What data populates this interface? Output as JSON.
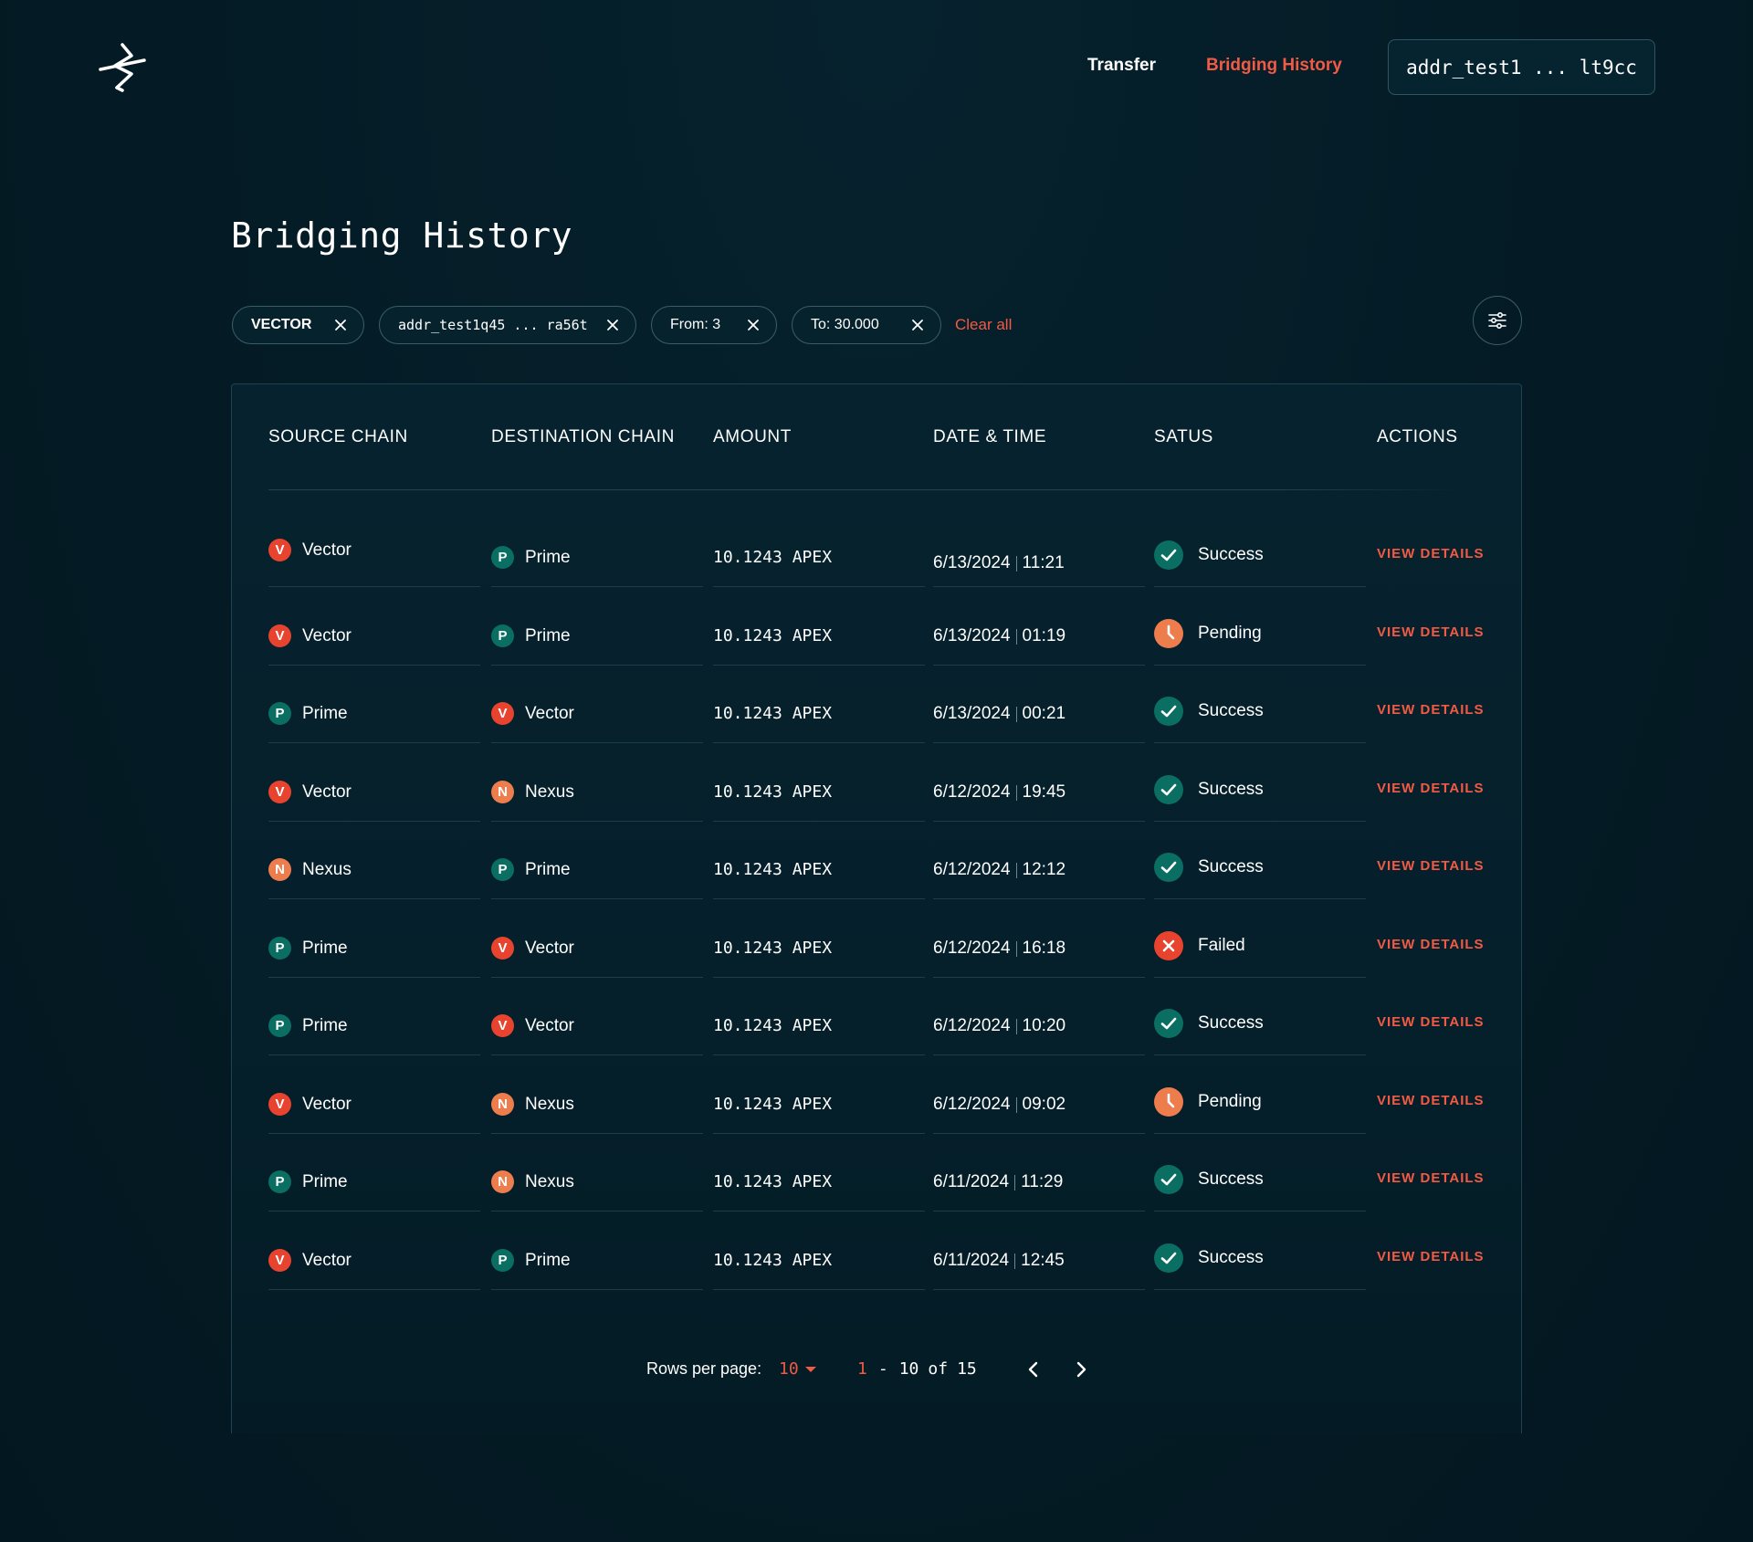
{
  "header": {
    "nav": [
      {
        "label": "Transfer",
        "active": false
      },
      {
        "label": "Bridging History",
        "active": true
      }
    ],
    "wallet_address": "addr_test1 ... lt9cc"
  },
  "page_title": "Bridging History",
  "filters": {
    "chips": [
      {
        "label": "VECTOR"
      },
      {
        "label": "addr_test1q45 ... ra56t"
      },
      {
        "label": "From: 3"
      },
      {
        "label": "To: 30.000"
      }
    ],
    "clear_all": "Clear all"
  },
  "table": {
    "columns": [
      "SOURCE CHAIN",
      "DESTINATION CHAIN",
      "AMOUNT",
      "DATE & TIME",
      "SATUS",
      "ACTIONS"
    ],
    "action_label": "VIEW DETAILS",
    "rows": [
      {
        "source": "Vector",
        "source_letter": "V",
        "dest": "Prime",
        "dest_letter": "P",
        "amount": "10.1243 APEX",
        "date": "6/13/2024",
        "time": "11:21",
        "status": "Success"
      },
      {
        "source": "Vector",
        "source_letter": "V",
        "dest": "Prime",
        "dest_letter": "P",
        "amount": "10.1243 APEX",
        "date": "6/13/2024",
        "time": "01:19",
        "status": "Pending"
      },
      {
        "source": "Prime",
        "source_letter": "P",
        "dest": "Vector",
        "dest_letter": "V",
        "amount": "10.1243 APEX",
        "date": "6/13/2024",
        "time": "00:21",
        "status": "Success"
      },
      {
        "source": "Vector",
        "source_letter": "V",
        "dest": "Nexus",
        "dest_letter": "N",
        "amount": "10.1243 APEX",
        "date": "6/12/2024",
        "time": "19:45",
        "status": "Success"
      },
      {
        "source": "Nexus",
        "source_letter": "N",
        "dest": "Prime",
        "dest_letter": "P",
        "amount": "10.1243 APEX",
        "date": "6/12/2024",
        "time": "12:12",
        "status": "Success"
      },
      {
        "source": "Prime",
        "source_letter": "P",
        "dest": "Vector",
        "dest_letter": "V",
        "amount": "10.1243 APEX",
        "date": "6/12/2024",
        "time": "16:18",
        "status": "Failed"
      },
      {
        "source": "Prime",
        "source_letter": "P",
        "dest": "Vector",
        "dest_letter": "V",
        "amount": "10.1243 APEX",
        "date": "6/12/2024",
        "time": "10:20",
        "status": "Success"
      },
      {
        "source": "Vector",
        "source_letter": "V",
        "dest": "Nexus",
        "dest_letter": "N",
        "amount": "10.1243 APEX",
        "date": "6/12/2024",
        "time": "09:02",
        "status": "Pending"
      },
      {
        "source": "Prime",
        "source_letter": "P",
        "dest": "Nexus",
        "dest_letter": "N",
        "amount": "10.1243 APEX",
        "date": "6/11/2024",
        "time": "11:29",
        "status": "Success"
      },
      {
        "source": "Vector",
        "source_letter": "V",
        "dest": "Prime",
        "dest_letter": "P",
        "amount": "10.1243 APEX",
        "date": "6/11/2024",
        "time": "12:45",
        "status": "Success"
      }
    ]
  },
  "pagination": {
    "rows_per_page_label": "Rows per page:",
    "rows_per_page": "10",
    "range_start": "1",
    "range_end": "10",
    "of_label": "of",
    "total": "15"
  },
  "colors": {
    "accent": "#f25a44",
    "background": "#041b25",
    "vector": "#e8432f",
    "prime": "#0b6e62",
    "nexus": "#ee7d4e",
    "success": "#0b6e62",
    "pending": "#ee7d4e",
    "failed": "#e8432f"
  }
}
